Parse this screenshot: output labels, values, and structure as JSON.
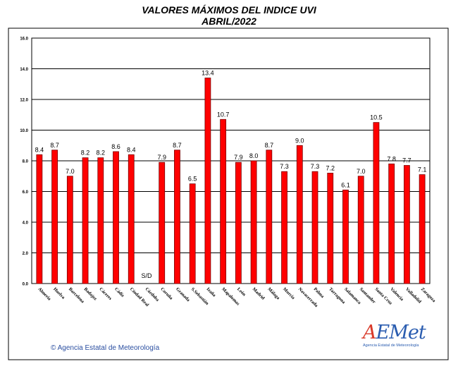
{
  "title": "VALORES MÁXIMOS DEL INDICE UVI",
  "subtitle": "ABRIL/2022",
  "copyright": "© Agencia Estatal de Meteorología",
  "logo": {
    "text_a": "A",
    "text_rest": "EMet",
    "sub": "Agencia Estatal de Meteorología"
  },
  "colors": {
    "bar": "#ff0000",
    "bar_border": "#7a0000",
    "grid": "#000000",
    "background": "#ffffff"
  },
  "chart_data": {
    "type": "bar",
    "categories": [
      "Almería",
      "Huelva",
      "Barcelona",
      "Badajoz",
      "Cáceres",
      "Cádiz",
      "Ciudad Real",
      "Córdoba",
      "Coruña",
      "Granada",
      "S.Sebastián",
      "Izaña",
      "Mapalomas",
      "León",
      "Madrid",
      "Málaga",
      "Murcia",
      "Navacerrada",
      "Palma",
      "Tarragona",
      "Salamanca",
      "Santander",
      "Santa Cruz",
      "Valencia",
      "Valladolid",
      "Zaragoza"
    ],
    "values": [
      8.4,
      8.7,
      7.0,
      8.2,
      8.2,
      8.6,
      8.4,
      null,
      7.9,
      8.7,
      6.5,
      13.4,
      10.7,
      7.9,
      8.0,
      8.7,
      7.3,
      9.0,
      7.3,
      7.2,
      6.1,
      7.0,
      10.5,
      7.8,
      7.7,
      7.1
    ],
    "bar_labels": [
      "8.4",
      "8.7",
      "7.0",
      "8.2",
      "8.2",
      "8.6",
      "8.4",
      "S/D",
      "7.9",
      "8.7",
      "6.5",
      "13.4",
      "10.7",
      "7.9",
      "8.0",
      "8.7",
      "7.3",
      "9.0",
      "7.3",
      "7.2",
      "6.1",
      "7.0",
      "10.5",
      "7.8",
      "7.7",
      "7.1"
    ],
    "y_ticks": [
      "0.0",
      "2.0",
      "4.0",
      "6.0",
      "8.0",
      "10.0",
      "12.0",
      "14.0",
      "16.0"
    ],
    "ylim": [
      0,
      16
    ],
    "grid": true,
    "title": "VALORES MÁXIMOS DEL INDICE UVI",
    "subtitle": "ABRIL/2022"
  }
}
